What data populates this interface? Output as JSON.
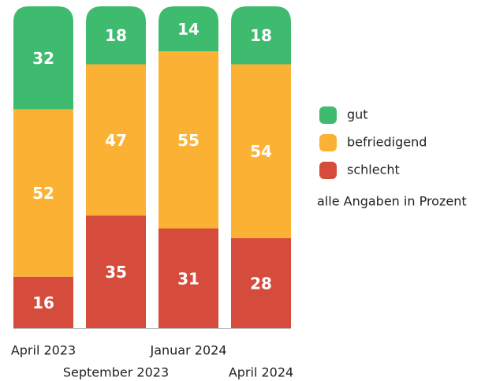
{
  "chart_data": {
    "type": "stacked_bar",
    "categories": [
      "April 2023",
      "September 2023",
      "Januar 2024",
      "April 2024"
    ],
    "series": [
      {
        "name": "schlecht",
        "color": "#d64c3c",
        "values": [
          16,
          35,
          31,
          28
        ]
      },
      {
        "name": "befriedigend",
        "color": "#fbb234",
        "values": [
          52,
          47,
          55,
          54
        ]
      },
      {
        "name": "gut",
        "color": "#3fbb6f",
        "values": [
          32,
          18,
          14,
          18
        ]
      }
    ],
    "ylim": [
      0,
      100
    ],
    "legend": "right",
    "note": "alle Angaben in Prozent"
  }
}
